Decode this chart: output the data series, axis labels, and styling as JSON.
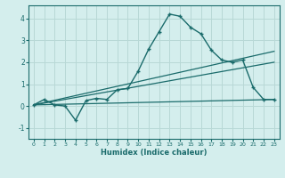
{
  "title": "",
  "xlabel": "Humidex (Indice chaleur)",
  "background_color": "#d4eeed",
  "grid_color": "#b8d8d6",
  "line_color": "#1a6b6b",
  "xlim": [
    -0.5,
    23.5
  ],
  "ylim": [
    -1.5,
    4.6
  ],
  "xticks": [
    0,
    1,
    2,
    3,
    4,
    5,
    6,
    7,
    8,
    9,
    10,
    11,
    12,
    13,
    14,
    15,
    16,
    17,
    18,
    19,
    20,
    21,
    22,
    23
  ],
  "yticks": [
    -1,
    0,
    1,
    2,
    3,
    4
  ],
  "curve1_x": [
    0,
    1,
    2,
    3,
    4,
    5,
    6,
    7,
    8,
    9,
    10,
    11,
    12,
    13,
    14,
    15,
    16,
    17,
    18,
    19,
    20,
    21,
    22,
    23
  ],
  "curve1_y": [
    0.05,
    0.3,
    0.05,
    0.0,
    -0.65,
    0.25,
    0.35,
    0.3,
    0.75,
    0.8,
    1.6,
    2.6,
    3.4,
    4.2,
    4.1,
    3.6,
    3.3,
    2.55,
    2.1,
    2.0,
    2.1,
    0.85,
    0.3,
    0.3
  ],
  "line1_x": [
    0,
    23
  ],
  "line1_y": [
    0.05,
    0.3
  ],
  "line2_x": [
    0,
    23
  ],
  "line2_y": [
    0.05,
    2.0
  ],
  "line3_x": [
    0,
    23
  ],
  "line3_y": [
    0.05,
    2.5
  ]
}
